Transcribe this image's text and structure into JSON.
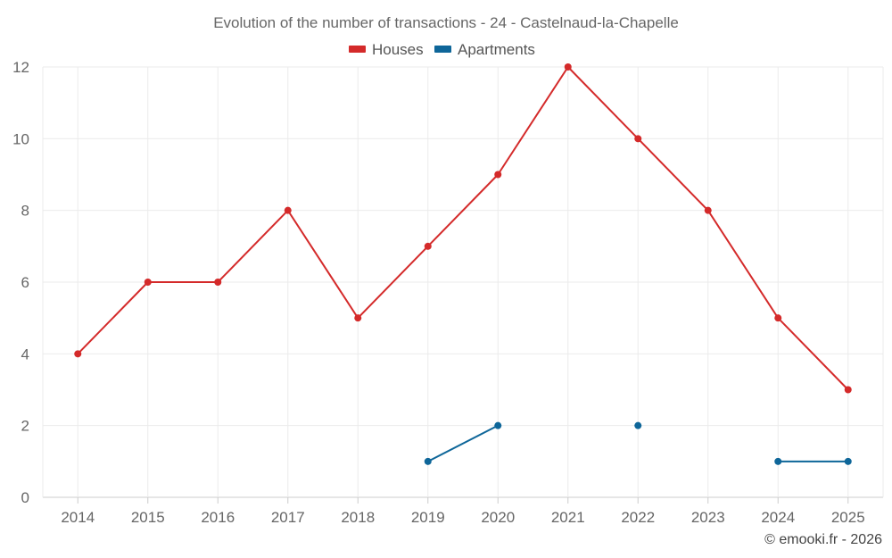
{
  "chart_data": {
    "type": "line",
    "title": "Evolution of the number of transactions - 24 - Castelnaud-la-Chapelle",
    "categories": [
      "2014",
      "2015",
      "2016",
      "2017",
      "2018",
      "2019",
      "2020",
      "2021",
      "2022",
      "2023",
      "2024",
      "2025"
    ],
    "series": [
      {
        "name": "Houses",
        "color": "#d42a2a",
        "values": [
          4,
          6,
          6,
          8,
          5,
          7,
          9,
          12,
          10,
          8,
          5,
          3
        ]
      },
      {
        "name": "Apartments",
        "color": "#0e6699",
        "values": [
          null,
          null,
          null,
          null,
          null,
          1,
          2,
          null,
          2,
          null,
          1,
          1
        ]
      }
    ],
    "ylim": [
      0,
      12
    ],
    "yticks": [
      0,
      2,
      4,
      6,
      8,
      10,
      12
    ],
    "xlabel": "",
    "ylabel": "",
    "grid": true,
    "legend": "top-center"
  },
  "credit": "© emooki.fr - 2026"
}
